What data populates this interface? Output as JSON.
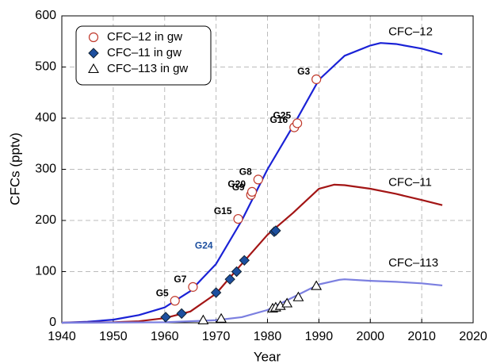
{
  "chart_data": {
    "type": "line",
    "xlabel": "Year",
    "ylabel": "CFCs (pptv)",
    "xlim": [
      1940,
      2020
    ],
    "xticks": [
      1940,
      1950,
      1960,
      1970,
      1980,
      1990,
      2000,
      2010,
      2020
    ],
    "ylim": [
      0,
      600
    ],
    "yticks": [
      0,
      100,
      200,
      300,
      400,
      500,
      600
    ],
    "grid": true,
    "series": [
      {
        "name": "CFC–12",
        "color": "#1a22d6",
        "x": [
          1940,
          1945,
          1950,
          1955,
          1960,
          1965,
          1970,
          1975,
          1980,
          1985,
          1990,
          1995,
          2000,
          2002,
          2005,
          2010,
          2014
        ],
        "values": [
          0,
          2,
          6,
          15,
          30,
          62,
          115,
          200,
          300,
          385,
          475,
          522,
          542,
          547,
          545,
          536,
          525
        ]
      },
      {
        "name": "CFC–11",
        "color": "#a31515",
        "x": [
          1940,
          1950,
          1955,
          1960,
          1965,
          1970,
          1975,
          1980,
          1985,
          1990,
          1993,
          1995,
          2000,
          2005,
          2010,
          2014
        ],
        "values": [
          0,
          1,
          3,
          9,
          22,
          57,
          115,
          172,
          215,
          262,
          270,
          269,
          262,
          252,
          240,
          230
        ]
      },
      {
        "name": "CFC–113",
        "color": "#7b7fe0",
        "x": [
          1940,
          1960,
          1970,
          1975,
          1980,
          1985,
          1990,
          1994,
          1995,
          2000,
          2005,
          2010,
          2014
        ],
        "values": [
          0,
          1,
          5,
          11,
          25,
          50,
          75,
          84,
          85,
          82,
          80,
          77,
          73
        ]
      },
      {
        "name": "CFC–12 in gw",
        "marker": "circle",
        "color": "#c0392b",
        "label_color": "#000000",
        "x": [
          1962,
          1965.5,
          1974.3,
          1976.8,
          1977,
          1978.2,
          1985.2,
          1985.8,
          1989.5
        ],
        "values": [
          43,
          70,
          203,
          250,
          256,
          280,
          382,
          390,
          476
        ],
        "labels": [
          "G5",
          "G7",
          "G15",
          "G9",
          "G20",
          "G8",
          "G16",
          "G25",
          "G3"
        ]
      },
      {
        "name": "CFC–11 in gw",
        "marker": "diamond",
        "color": "#1d4f9f",
        "label_color": "#1d4f9f",
        "x": [
          1960.2,
          1963.3,
          1970,
          1972.7,
          1974,
          1975.5,
          1981.3,
          1981.6
        ],
        "values": [
          11,
          18,
          59,
          85,
          100,
          122,
          178,
          180
        ],
        "labels": [
          null,
          null,
          null,
          null,
          "G24",
          null,
          null,
          null
        ]
      },
      {
        "name": "CFC–113 in gw",
        "marker": "triangle",
        "color": "#000000",
        "x": [
          1967.5,
          1971,
          1981,
          1981.6,
          1982.5,
          1983.8,
          1986,
          1989.5
        ],
        "values": [
          5,
          8,
          28,
          30,
          33,
          38,
          50,
          72
        ]
      }
    ]
  }
}
